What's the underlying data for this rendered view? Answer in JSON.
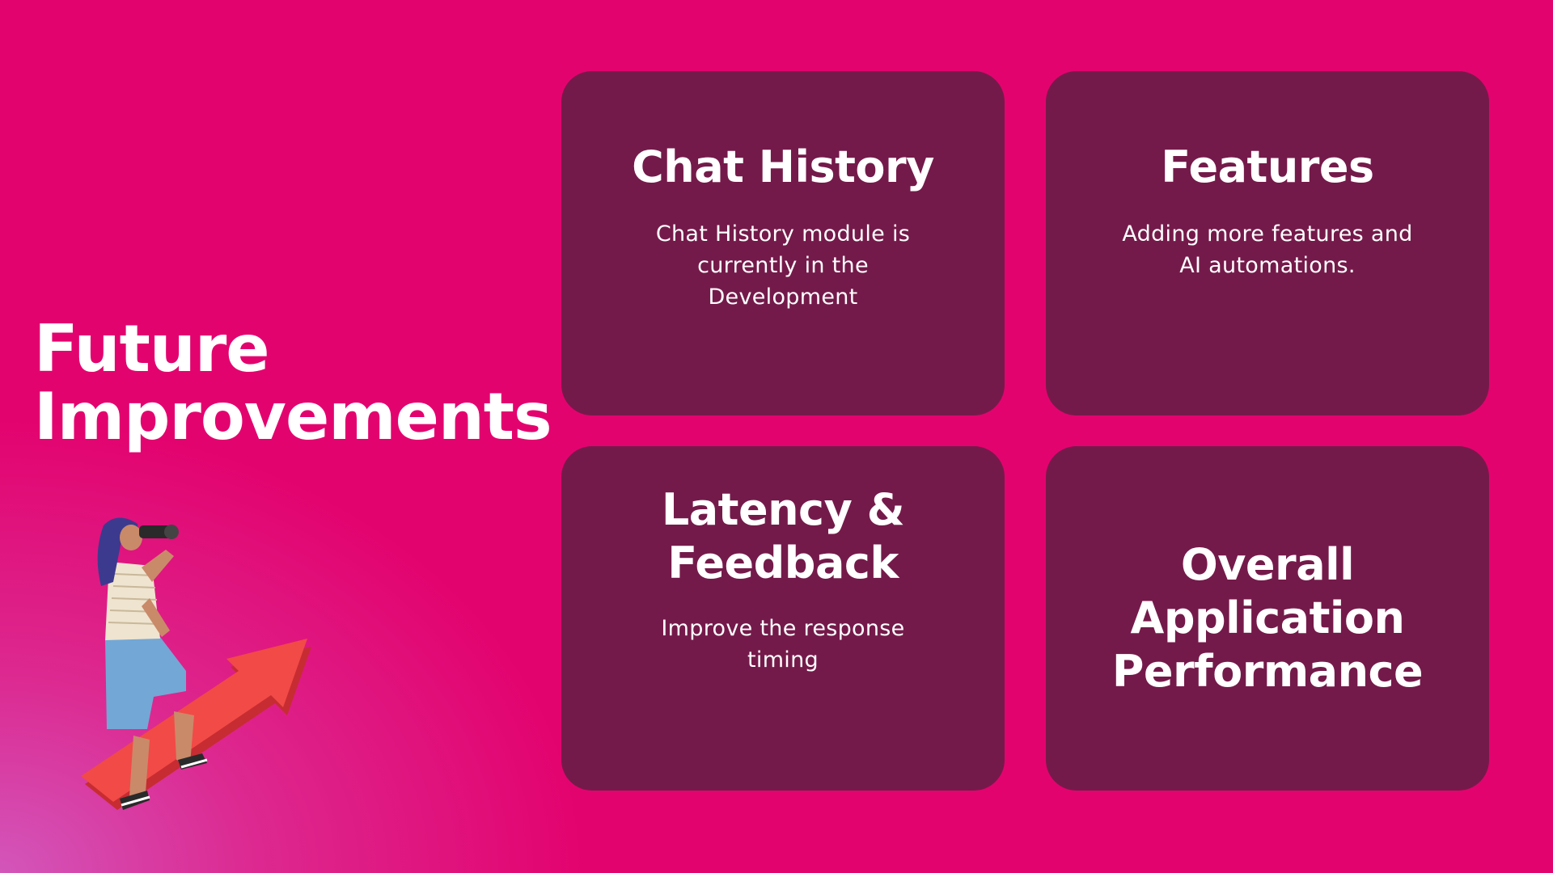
{
  "slide": {
    "title_line1": "Future",
    "title_line2": "Improvements",
    "colors": {
      "background": "#e3036f",
      "card": "#741a4a",
      "text": "#ffffff",
      "arrow": "#f24a47"
    },
    "illustration": "person-climbing-arrow-with-binoculars",
    "cards": [
      {
        "title": "Chat History",
        "description": "Chat History module is currently in the Development"
      },
      {
        "title": "Features",
        "description": "Adding more features and AI automations."
      },
      {
        "title": "Latency & Feedback",
        "description": "Improve the response timing"
      },
      {
        "title": "Overall Application Performance",
        "description": ""
      }
    ]
  }
}
